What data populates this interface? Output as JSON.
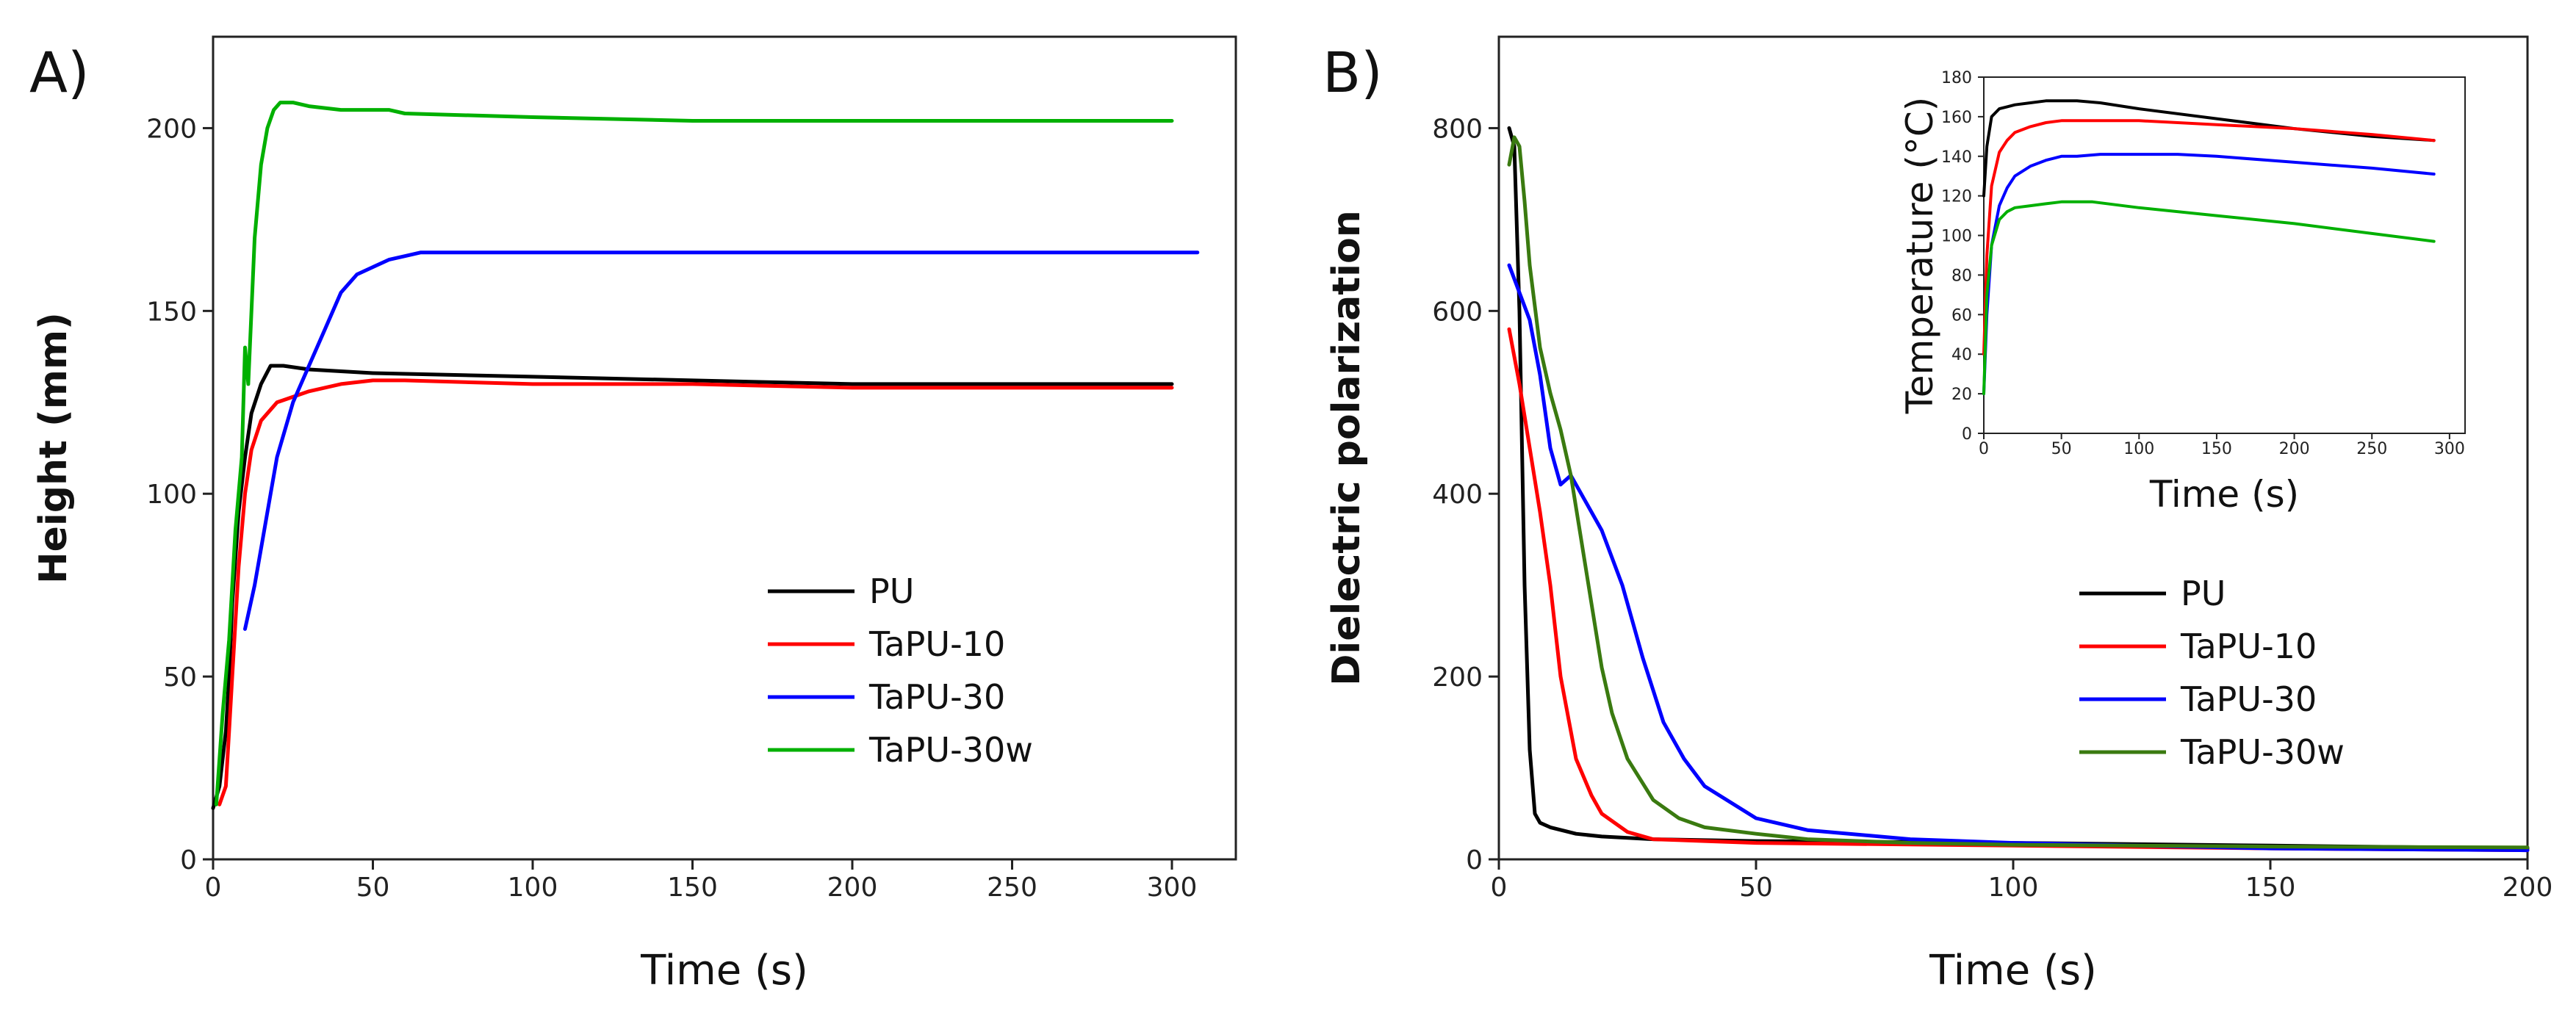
{
  "chart_data": [
    {
      "id": "A",
      "type": "line",
      "panel_label": "A)",
      "xlabel": "Time (s)",
      "ylabel": "Height (mm)",
      "xlim": [
        0,
        320
      ],
      "ylim": [
        0,
        225
      ],
      "xticks": [
        0,
        50,
        100,
        150,
        200,
        250,
        300
      ],
      "yticks": [
        0,
        50,
        100,
        150,
        200
      ],
      "legend_position": "lower-right",
      "series": [
        {
          "name": "PU",
          "color": "#000000",
          "x": [
            0,
            2,
            4,
            5,
            6,
            8,
            10,
            12,
            15,
            18,
            22,
            30,
            50,
            100,
            150,
            200,
            250,
            300
          ],
          "y": [
            14,
            20,
            35,
            50,
            70,
            95,
            110,
            122,
            130,
            135,
            135,
            134,
            133,
            132,
            131,
            130,
            130,
            130
          ]
        },
        {
          "name": "TaPU-10",
          "color": "#ff0000",
          "x": [
            2,
            4,
            5,
            6,
            8,
            10,
            12,
            15,
            20,
            30,
            40,
            50,
            60,
            100,
            150,
            200,
            250,
            300
          ],
          "y": [
            15,
            20,
            35,
            50,
            80,
            100,
            112,
            120,
            125,
            128,
            130,
            131,
            131,
            130,
            130,
            129,
            129,
            129
          ]
        },
        {
          "name": "TaPU-30",
          "color": "#0000ff",
          "x": [
            10,
            13,
            15,
            18,
            20,
            25,
            30,
            35,
            40,
            45,
            50,
            55,
            60,
            65,
            70,
            100,
            150,
            200,
            250,
            308
          ],
          "y": [
            63,
            75,
            85,
            100,
            110,
            125,
            135,
            145,
            155,
            160,
            162,
            164,
            165,
            166,
            166,
            166,
            166,
            166,
            166,
            166
          ]
        },
        {
          "name": "TaPU-30w",
          "color": "#00b000",
          "x": [
            1,
            3,
            5,
            7,
            9,
            10,
            11,
            13,
            15,
            17,
            19,
            21,
            25,
            30,
            40,
            55,
            60,
            100,
            150,
            200,
            250,
            300
          ],
          "y": [
            15,
            40,
            60,
            90,
            110,
            140,
            130,
            170,
            190,
            200,
            205,
            207,
            207,
            206,
            205,
            205,
            204,
            203,
            202,
            202,
            202,
            202
          ]
        }
      ]
    },
    {
      "id": "B",
      "type": "line",
      "panel_label": "B)",
      "xlabel": "Time (s)",
      "ylabel": "Dielectric polarization",
      "xlim": [
        0,
        200
      ],
      "ylim": [
        0,
        900
      ],
      "xticks": [
        0,
        50,
        100,
        150,
        200
      ],
      "yticks": [
        0,
        200,
        400,
        600,
        800
      ],
      "legend_position": "lower-right",
      "series": [
        {
          "name": "PU",
          "color": "#000000",
          "x": [
            2,
            3,
            4,
            5,
            6,
            7,
            8,
            10,
            15,
            20,
            30,
            50,
            100,
            150,
            200
          ],
          "y": [
            800,
            780,
            600,
            300,
            120,
            50,
            40,
            35,
            28,
            25,
            22,
            20,
            18,
            15,
            12
          ]
        },
        {
          "name": "TaPU-10",
          "color": "#ff0000",
          "x": [
            2,
            4,
            6,
            8,
            10,
            12,
            15,
            18,
            20,
            25,
            30,
            40,
            50,
            100,
            150,
            200
          ],
          "y": [
            580,
            520,
            450,
            380,
            300,
            200,
            110,
            70,
            50,
            30,
            22,
            20,
            18,
            15,
            12,
            10
          ]
        },
        {
          "name": "TaPU-30",
          "color": "#0000ff",
          "x": [
            2,
            4,
            6,
            8,
            10,
            12,
            14,
            16,
            20,
            24,
            28,
            32,
            36,
            40,
            50,
            60,
            80,
            100,
            150,
            200
          ],
          "y": [
            650,
            620,
            590,
            530,
            450,
            410,
            420,
            400,
            360,
            300,
            220,
            150,
            110,
            80,
            45,
            32,
            22,
            18,
            12,
            10
          ]
        },
        {
          "name": "TaPU-30w",
          "color": "#3a7a10",
          "x": [
            2,
            3,
            4,
            5,
            6,
            8,
            10,
            12,
            14,
            16,
            18,
            20,
            22,
            25,
            30,
            35,
            40,
            50,
            60,
            80,
            100,
            150,
            200
          ],
          "y": [
            760,
            790,
            780,
            720,
            650,
            560,
            510,
            470,
            420,
            350,
            280,
            210,
            160,
            110,
            65,
            45,
            35,
            28,
            22,
            18,
            16,
            14,
            13
          ]
        }
      ],
      "inset": {
        "type": "line",
        "xlabel": "Time (s)",
        "ylabel": "Temperature (°C)",
        "xlim": [
          0,
          310
        ],
        "ylim": [
          0,
          180
        ],
        "xticks": [
          0,
          50,
          100,
          150,
          200,
          250,
          300
        ],
        "yticks": [
          0,
          20,
          40,
          60,
          80,
          100,
          120,
          140,
          160,
          180
        ],
        "series": [
          {
            "name": "PU",
            "color": "#000000",
            "x": [
              0,
              2,
              5,
              10,
              15,
              20,
              30,
              40,
              50,
              60,
              75,
              100,
              150,
              200,
              250,
              290
            ],
            "y": [
              120,
              145,
              160,
              164,
              165,
              166,
              167,
              168,
              168,
              168,
              167,
              164,
              159,
              154,
              150,
              148
            ]
          },
          {
            "name": "TaPU-10",
            "color": "#ff0000",
            "x": [
              0,
              2,
              5,
              10,
              15,
              20,
              30,
              40,
              50,
              60,
              75,
              100,
              150,
              200,
              250,
              290
            ],
            "y": [
              40,
              90,
              125,
              142,
              148,
              152,
              155,
              157,
              158,
              158,
              158,
              158,
              156,
              154,
              151,
              148
            ]
          },
          {
            "name": "TaPU-30",
            "color": "#0000ff",
            "x": [
              0,
              2,
              5,
              10,
              15,
              20,
              30,
              40,
              50,
              60,
              75,
              100,
              125,
              150,
              200,
              250,
              290
            ],
            "y": [
              20,
              60,
              95,
              115,
              124,
              130,
              135,
              138,
              140,
              140,
              141,
              141,
              141,
              140,
              137,
              134,
              131
            ]
          },
          {
            "name": "TaPU-30w",
            "color": "#00b000",
            "x": [
              0,
              2,
              5,
              10,
              15,
              20,
              30,
              40,
              50,
              60,
              70,
              100,
              150,
              200,
              250,
              290
            ],
            "y": [
              20,
              70,
              95,
              108,
              112,
              114,
              115,
              116,
              117,
              117,
              117,
              114,
              110,
              106,
              101,
              97
            ]
          }
        ]
      }
    }
  ]
}
